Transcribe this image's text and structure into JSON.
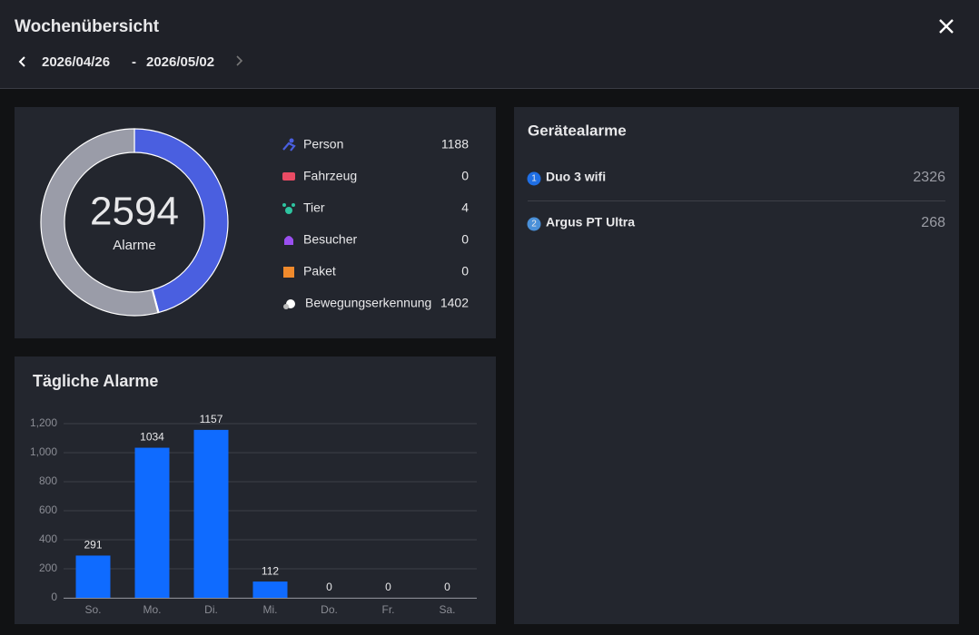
{
  "header": {
    "title": "Wochenübersicht",
    "start_date": "2026/04/26",
    "separator": "-",
    "end_date": "2026/05/02"
  },
  "summary": {
    "total": 2594,
    "total_label": "Alarme",
    "types": [
      {
        "name": "Person",
        "value": 1188,
        "color": "#4a5fe0"
      },
      {
        "name": "Fahrzeug",
        "value": 0,
        "color": "#e94b64"
      },
      {
        "name": "Tier",
        "value": 4,
        "color": "#2ec4a0"
      },
      {
        "name": "Besucher",
        "value": 0,
        "color": "#9a4ff0"
      },
      {
        "name": "Paket",
        "value": 0,
        "color": "#f08a2c"
      },
      {
        "name": "Bewegungserkennung",
        "value": 1402,
        "color": "#9a9ca8"
      }
    ]
  },
  "devices": {
    "title": "Gerätealarme",
    "items": [
      {
        "rank": 1,
        "name": "Duo 3 wifi",
        "value": 2326,
        "color": "#1f6fe5"
      },
      {
        "rank": 2,
        "name": "Argus PT Ultra",
        "value": 268,
        "color": "#4a90d9"
      }
    ]
  },
  "chart_data": {
    "type": "bar",
    "title": "Tägliche Alarme",
    "categories": [
      "So.",
      "Mo.",
      "Di.",
      "Mi.",
      "Do.",
      "Fr.",
      "Sa."
    ],
    "values": [
      291,
      1034,
      1157,
      112,
      0,
      0,
      0
    ],
    "color": "#0f6bff",
    "ylim": [
      0,
      1200
    ],
    "yticks": [
      0,
      200,
      400,
      600,
      800,
      {
        "value": 1000,
        "label": "1,000"
      },
      {
        "value": 1200,
        "label": "1,200"
      }
    ],
    "grid": true
  }
}
